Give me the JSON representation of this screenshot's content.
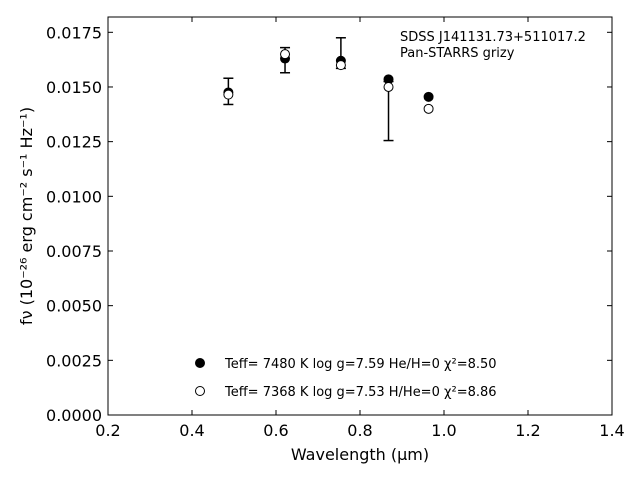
{
  "chart_data": {
    "type": "scatter",
    "xlabel": "Wavelength (μm)",
    "ylabel": "fν (10⁻²⁶ erg cm⁻² s⁻¹ Hz⁻¹)",
    "xlim": [
      0.2,
      1.4
    ],
    "ylim": [
      0.0,
      0.0182
    ],
    "x_ticks": [
      "0.2",
      "0.4",
      "0.6",
      "0.8",
      "1.0",
      "1.2",
      "1.4"
    ],
    "y_ticks": [
      "0.0000",
      "0.0025",
      "0.0050",
      "0.0075",
      "0.0100",
      "0.0125",
      "0.0150",
      "0.0175"
    ],
    "annotations": [
      "SDSS J141131.73+511017.2",
      "Pan-STARRS grizy"
    ],
    "legend_position": "bottom-center",
    "observed": {
      "x": [
        0.4866,
        0.6215,
        0.7545,
        0.8679,
        0.9633
      ],
      "y": [
        0.0148,
        0.0162,
        0.01655,
        0.0139,
        0.0155
      ],
      "err_low": [
        0.0142,
        0.01565,
        0.01585,
        0.01255,
        null
      ],
      "err_high": [
        0.0154,
        0.0168,
        0.01725,
        0.01525,
        null
      ]
    },
    "series": [
      {
        "marker": "filled-circle",
        "legend_label": "Teff=  7480 K  log g=7.59  He/H=0  χ²=8.50",
        "x": [
          0.4866,
          0.6215,
          0.7545,
          0.8679,
          0.9633
        ],
        "y": [
          0.01475,
          0.0163,
          0.0162,
          0.01535,
          0.01455
        ]
      },
      {
        "marker": "open-circle",
        "legend_label": "Teff=  7368 K  log g=7.53  H/He=0  χ²=8.86",
        "x": [
          0.4866,
          0.6215,
          0.7545,
          0.8679,
          0.9633
        ],
        "y": [
          0.01465,
          0.0165,
          0.016,
          0.015,
          0.014
        ]
      }
    ],
    "colors": {
      "marker": "#000000",
      "open_fill": "#ffffff",
      "axes": "#000000"
    }
  }
}
